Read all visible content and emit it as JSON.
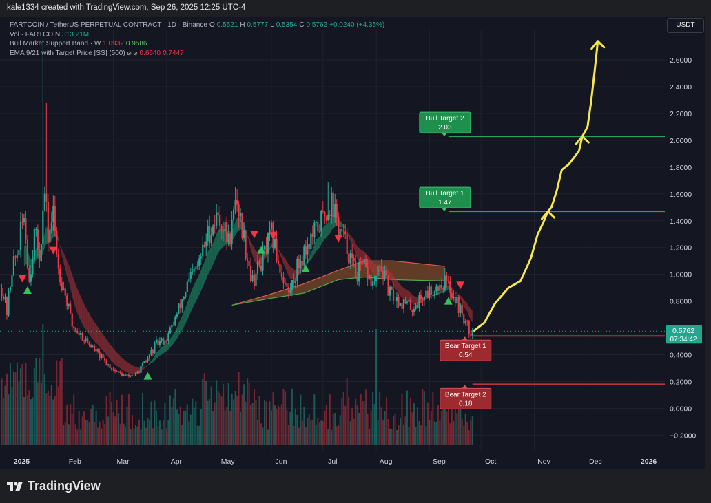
{
  "header": {
    "attribution": "kale1334 created with TradingView.com, Sep 26, 2025 12:25 UTC-4"
  },
  "legend": {
    "symbol": "FARTCOIN / TetherUS PERPETUAL CONTRACT · 1D · Binance",
    "ohlc": {
      "o_label": "O",
      "o": "0.5521",
      "h_label": "H",
      "h": "0.5777",
      "l_label": "L",
      "l": "0.5354",
      "c_label": "C",
      "c": "0.5762",
      "change": "+0.0240 (+4.35%)"
    },
    "volume": {
      "label": "Vol · FARTCOIN",
      "value": "313.21M"
    },
    "bull_band": {
      "label": "Bull Market Support Band · W",
      "v1": "1.0932",
      "v2": "0.9586"
    },
    "ema": {
      "label": "EMA 9/21 with Target Price [SS] (500)",
      "sym": "⌀  ⌀",
      "v1": "0.6640",
      "v2": "0.7447"
    }
  },
  "currency": "USDT",
  "price_badge": {
    "price": "0.5762",
    "countdown": "07:34:42"
  },
  "footer": {
    "brand": "TradingView"
  },
  "colors": {
    "bull": "#22ab94",
    "bear": "#f23645",
    "target_green": "#1f8f4e",
    "target_red": "#9c2a2f",
    "arrow": "#f7e84a",
    "band_fill": "#7a4a2a"
  },
  "chart_data": {
    "type": "candlestick",
    "y_ticks": [
      "2.6000",
      "2.4000",
      "2.2000",
      "2.0000",
      "1.8000",
      "1.6000",
      "1.4000",
      "1.2000",
      "1.0000",
      "0.8000",
      "0.6000",
      "0.4000",
      "0.2000",
      "0.0000",
      "−0.2000"
    ],
    "y_tick_values": [
      2.6,
      2.4,
      2.2,
      2.0,
      1.8,
      1.6,
      1.4,
      1.2,
      1.0,
      0.8,
      0.6,
      0.4,
      0.2,
      0.0,
      -0.2
    ],
    "ylim": [
      -0.27,
      2.78
    ],
    "x_ticks": [
      "2025",
      "Feb",
      "Mar",
      "Apr",
      "May",
      "Jun",
      "Jul",
      "Aug",
      "Sep",
      "Oct",
      "Nov",
      "Dec",
      "2026"
    ],
    "x_tick_days": [
      0,
      31,
      59,
      90,
      120,
      151,
      181,
      212,
      243,
      273,
      304,
      334,
      365
    ],
    "xlim_days": [
      -7,
      380
    ],
    "last_day": 268,
    "close_anchors": [
      [
        -6,
        0.9
      ],
      [
        -3,
        0.72
      ],
      [
        0,
        1.05
      ],
      [
        3,
        1.15
      ],
      [
        7,
        1.45
      ],
      [
        10,
        0.95
      ],
      [
        13,
        1.3
      ],
      [
        16,
        1.15
      ],
      [
        19,
        1.6
      ],
      [
        21,
        1.28
      ],
      [
        24,
        1.45
      ],
      [
        27,
        1.05
      ],
      [
        31,
        0.85
      ],
      [
        35,
        0.62
      ],
      [
        40,
        0.55
      ],
      [
        47,
        0.45
      ],
      [
        54,
        0.35
      ],
      [
        60,
        0.28
      ],
      [
        66,
        0.24
      ],
      [
        72,
        0.25
      ],
      [
        78,
        0.35
      ],
      [
        84,
        0.48
      ],
      [
        90,
        0.52
      ],
      [
        96,
        0.7
      ],
      [
        102,
        0.92
      ],
      [
        108,
        1.05
      ],
      [
        114,
        1.3
      ],
      [
        120,
        1.45
      ],
      [
        126,
        1.25
      ],
      [
        131,
        1.55
      ],
      [
        136,
        1.2
      ],
      [
        140,
        0.95
      ],
      [
        146,
        1.12
      ],
      [
        151,
        1.3
      ],
      [
        156,
        1.05
      ],
      [
        161,
        0.85
      ],
      [
        166,
        1.05
      ],
      [
        171,
        1.2
      ],
      [
        176,
        1.3
      ],
      [
        182,
        1.45
      ],
      [
        186,
        1.55
      ],
      [
        190,
        1.35
      ],
      [
        195,
        1.2
      ],
      [
        200,
        1.0
      ],
      [
        205,
        1.05
      ],
      [
        210,
        0.92
      ],
      [
        215,
        1.05
      ],
      [
        220,
        0.85
      ],
      [
        226,
        0.8
      ],
      [
        233,
        0.75
      ],
      [
        240,
        0.85
      ],
      [
        246,
        0.9
      ],
      [
        252,
        0.95
      ],
      [
        257,
        0.85
      ],
      [
        262,
        0.7
      ],
      [
        266,
        0.58
      ],
      [
        268,
        0.576
      ]
    ],
    "spikes": [
      {
        "day": 18,
        "high": 2.75
      },
      {
        "day": 20,
        "high": 2.28
      },
      {
        "day": 130,
        "high": 1.65
      },
      {
        "day": 184,
        "high": 1.69
      }
    ],
    "volume_spikes": [
      {
        "day": 18,
        "value": 1.0
      },
      {
        "day": 212,
        "value": 0.96
      },
      {
        "day": 195,
        "value": 0.55
      }
    ],
    "ema_band": {
      "start_day": 8
    },
    "bull_market_band": {
      "start_day": 128,
      "upper": [
        [
          128,
          0.77
        ],
        [
          150,
          0.85
        ],
        [
          170,
          0.93
        ],
        [
          190,
          1.03
        ],
        [
          205,
          1.1
        ],
        [
          222,
          1.1
        ],
        [
          252,
          1.06
        ]
      ],
      "lower": [
        [
          128,
          0.77
        ],
        [
          150,
          0.82
        ],
        [
          170,
          0.86
        ],
        [
          190,
          0.96
        ],
        [
          205,
          0.98
        ],
        [
          222,
          0.96
        ],
        [
          252,
          0.95
        ]
      ]
    },
    "signals": [
      {
        "day": 6,
        "type": "sell",
        "price": 0.97
      },
      {
        "day": 9,
        "type": "buy",
        "price": 0.88
      },
      {
        "day": 24,
        "type": "sell",
        "price": 1.18
      },
      {
        "day": 79,
        "type": "buy",
        "price": 0.24
      },
      {
        "day": 141,
        "type": "sell",
        "price": 1.3
      },
      {
        "day": 145,
        "type": "buy",
        "price": 1.18
      },
      {
        "day": 152,
        "type": "sell",
        "price": 1.29
      },
      {
        "day": 171,
        "type": "buy",
        "price": 1.04
      },
      {
        "day": 190,
        "type": "sell",
        "price": 1.27
      },
      {
        "day": 254,
        "type": "buy",
        "price": 0.8
      },
      {
        "day": 261,
        "type": "sell",
        "price": 0.92
      }
    ],
    "targets": [
      {
        "label": "Bull Target 2",
        "value": 2.03,
        "text": "2.03",
        "kind": "bull",
        "label_day": 250,
        "line_start": 254
      },
      {
        "label": "Bull Target 1",
        "value": 1.47,
        "text": "1.47",
        "kind": "bull",
        "label_day": 250,
        "line_start": 254
      },
      {
        "label": "Bear Target 1",
        "value": 0.54,
        "text": "0.54",
        "kind": "bear",
        "label_day": 262,
        "line_start": 268
      },
      {
        "label": "Bear Target 2",
        "value": 0.18,
        "text": "0.18",
        "kind": "bear",
        "label_day": 262,
        "line_start": 268
      }
    ],
    "projection_path": [
      [
        269,
        0.58
      ],
      [
        275,
        0.64
      ],
      [
        281,
        0.78
      ],
      [
        289,
        0.9
      ],
      [
        296,
        0.95
      ],
      [
        302,
        1.12
      ],
      [
        306,
        1.3
      ],
      [
        309,
        1.38
      ],
      [
        312,
        1.47
      ],
      [
        314,
        1.5
      ],
      [
        317,
        1.62
      ],
      [
        320,
        1.78
      ],
      [
        324,
        1.82
      ],
      [
        330,
        1.92
      ],
      [
        332,
        2.03
      ],
      [
        335,
        2.1
      ],
      [
        337,
        2.28
      ],
      [
        339,
        2.5
      ],
      [
        341,
        2.74
      ]
    ]
  }
}
